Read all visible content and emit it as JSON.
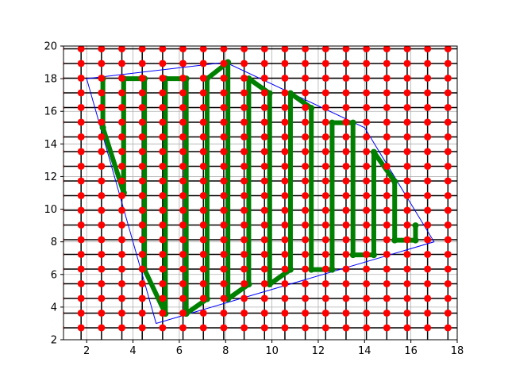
{
  "chart_data": {
    "type": "line",
    "title": "",
    "xlabel": "",
    "ylabel": "",
    "xlim": [
      1,
      18
    ],
    "ylim": [
      2,
      20
    ],
    "grid": true,
    "x_ticks": [
      2,
      4,
      6,
      8,
      10,
      12,
      14,
      16,
      18
    ],
    "y_ticks": [
      2,
      4,
      6,
      8,
      10,
      12,
      14,
      16,
      18,
      20
    ],
    "x_tick_labels": [
      "2",
      "4",
      "6",
      "8",
      "10",
      "12",
      "14",
      "16",
      "18"
    ],
    "y_tick_labels": [
      "2",
      "4",
      "6",
      "8",
      "10",
      "12",
      "14",
      "16",
      "18",
      "20"
    ],
    "grid_points": {
      "x_start": 0.88,
      "x_step": 0.88,
      "x_count": 20,
      "y_start": 2.73,
      "y_step": 0.9,
      "y_count": 20,
      "color": "#ff0000",
      "line_color": "#000000"
    },
    "boundary_polygon": {
      "color": "#0000ff",
      "points": [
        [
          2,
          18
        ],
        [
          8,
          19
        ],
        [
          14,
          15
        ],
        [
          17,
          8
        ],
        [
          5,
          3
        ],
        [
          2,
          18
        ]
      ]
    },
    "path": {
      "color": "#008000",
      "points": [
        [
          2.7,
          18
        ],
        [
          2.7,
          15
        ],
        [
          3.6,
          11
        ],
        [
          3.6,
          18
        ],
        [
          4.5,
          18
        ],
        [
          4.5,
          6.3
        ],
        [
          5.4,
          3.6
        ],
        [
          5.4,
          18
        ],
        [
          6.3,
          18
        ],
        [
          6.3,
          3.6
        ],
        [
          7.2,
          4.5
        ],
        [
          7.2,
          18
        ],
        [
          8.1,
          19
        ],
        [
          8.1,
          4.5
        ],
        [
          9,
          5.4
        ],
        [
          9,
          18
        ],
        [
          9.9,
          17.1
        ],
        [
          9.9,
          5.4
        ],
        [
          10.8,
          6.3
        ],
        [
          10.8,
          17.1
        ],
        [
          11.7,
          16.2
        ],
        [
          11.7,
          6.3
        ],
        [
          12.6,
          6.3
        ],
        [
          12.6,
          15.3
        ],
        [
          13.5,
          15.3
        ],
        [
          13.5,
          7.2
        ],
        [
          14.4,
          7.2
        ],
        [
          14.4,
          13.5
        ],
        [
          15.3,
          11.7
        ],
        [
          15.3,
          8.1
        ],
        [
          16.2,
          8.1
        ],
        [
          16.2,
          9
        ]
      ]
    }
  }
}
